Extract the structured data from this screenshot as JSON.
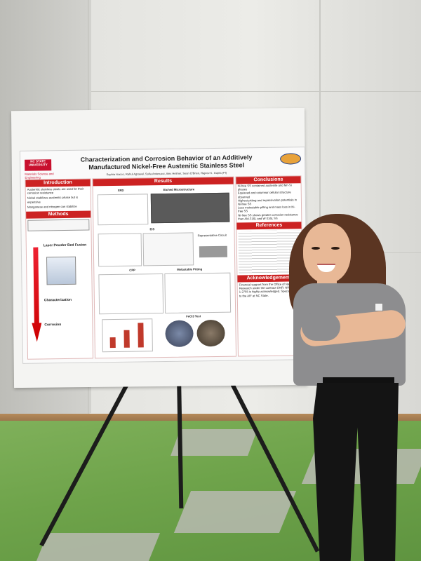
{
  "poster": {
    "logo": "NC STATE UNIVERSITY",
    "dept": "Materials Science and Engineering",
    "title": "Characterization and Corrosion Behavior of an Additively Manufactured Nickel-Free Austenitic Stainless Steel",
    "authors": "Sophia Isacco, Rahul Agrawal, Sofia Antonucci, Alex Helmer, Sean O'Brien, Rajeev K. Gupta (PI)",
    "sections": {
      "introduction": "Introduction",
      "methods": "Methods",
      "results": "Results",
      "conclusions": "Conclusions",
      "references": "References",
      "acknowledgements": "Acknowledgements"
    },
    "intro_bullets": [
      "Austenitic stainless steels are used for their corrosion resistance",
      "Nickel stabilizes austenitic phase but is expensive",
      "Manganese and nitrogen can stabilize"
    ],
    "methods_labels": {
      "laser": "Laser Powder Bed Fusion",
      "characterization": "Characterization",
      "corrosion": "Corrosion"
    },
    "result_labels": {
      "xrd": "XRD",
      "etched": "Etched Microstructure",
      "eis": "EIS",
      "circuit": "Representative Circuit",
      "cpp": "CPP",
      "pitting": "Metastable Pitting",
      "fecl3": "FeCl3 Test"
    },
    "conclusion_bullets": [
      "Ni-free SS contained austenite and Mn-Si phases",
      "Equiaxed and columnar cellular structure observed",
      "Highest pitting and repassivation potentials in Ni-free SS",
      "Less metastable pitting and mass loss in Ni-free SS",
      "Ni-free SS shows greater corrosion resistance than AM-316L and W-316L SS"
    ],
    "acknowledgement_text": "Financial support from the Office of Naval Research under the contract ONR: N00014-23-1-2755 is highly acknowledged. Special thanks to the AIF at NC State."
  }
}
